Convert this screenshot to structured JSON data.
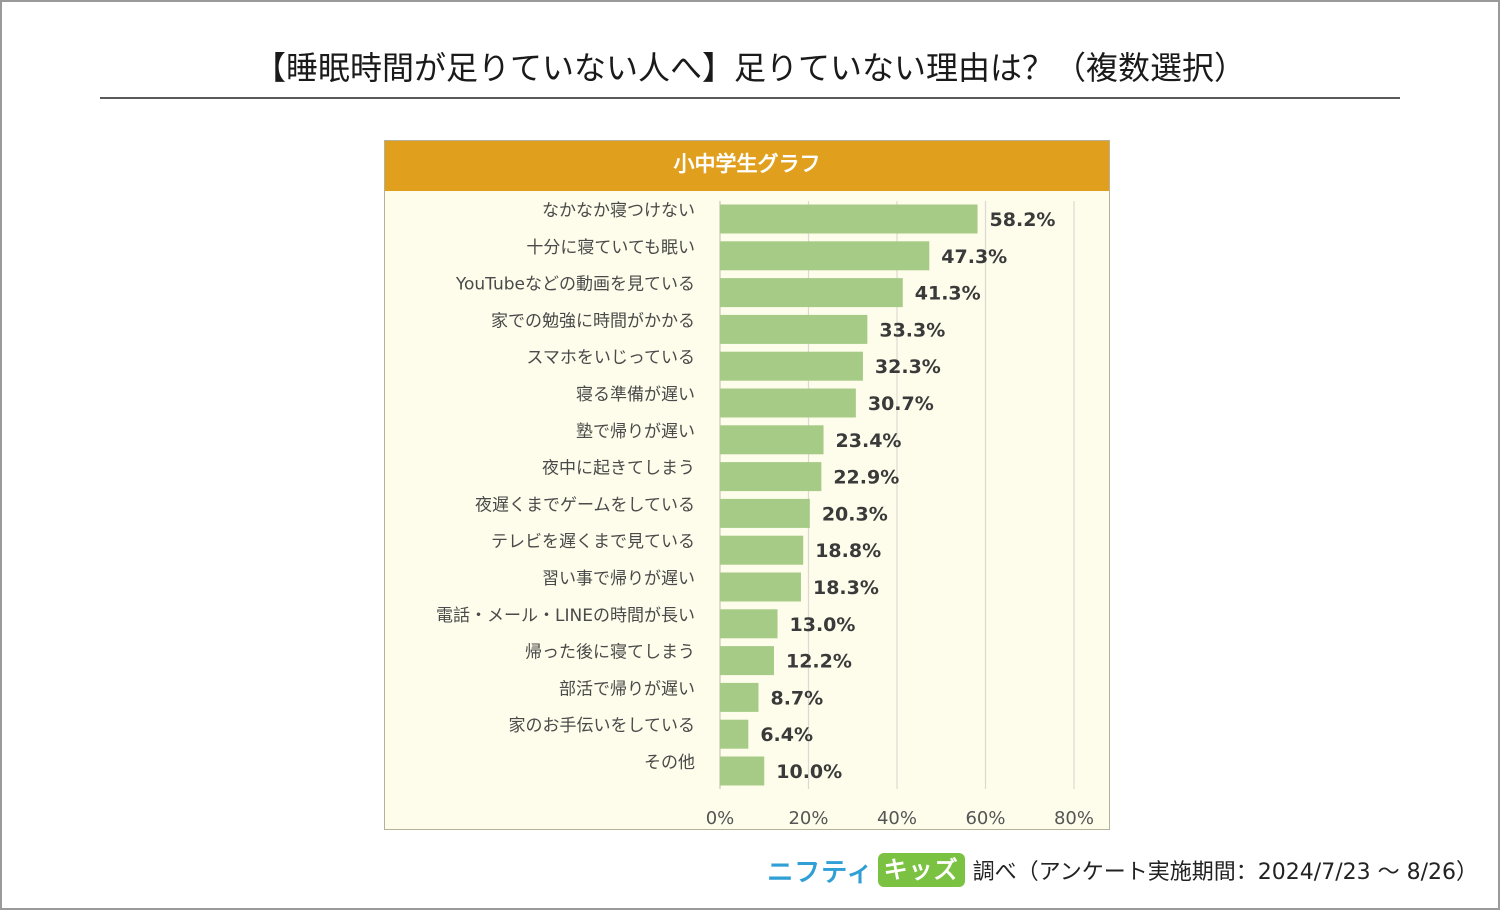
{
  "page": {
    "title": "【睡眠時間が足りていない人へ】足りていない理由は？（複数選択）"
  },
  "chart_panel": {
    "header": "小中学生グラフ"
  },
  "chart_data": {
    "type": "bar",
    "orientation": "horizontal",
    "title": "小中学生グラフ",
    "categories": [
      "なかなか寝つけない",
      "十分に寝ていても眠い",
      "YouTubeなどの動画を見ている",
      "家での勉強に時間がかかる",
      "スマホをいじっている",
      "寝る準備が遅い",
      "塾で帰りが遅い",
      "夜中に起きてしまう",
      "夜遅くまでゲームをしている",
      "テレビを遅くまで見ている",
      "習い事で帰りが遅い",
      "電話・メール・LINEの時間が長い",
      "帰った後に寝てしまう",
      "部活で帰りが遅い",
      "家のお手伝いをしている",
      "その他"
    ],
    "values": [
      58.2,
      47.3,
      41.3,
      33.3,
      32.3,
      30.7,
      23.4,
      22.9,
      20.3,
      18.8,
      18.3,
      13.0,
      12.2,
      8.7,
      6.4,
      10.0
    ],
    "value_labels": [
      "58.2%",
      "47.3%",
      "41.3%",
      "33.3%",
      "32.3%",
      "30.7%",
      "23.4%",
      "22.9%",
      "20.3%",
      "18.8%",
      "18.3%",
      "13.0%",
      "12.2%",
      "8.7%",
      "6.4%",
      "10.0%"
    ],
    "xlim": [
      0,
      80
    ],
    "x_ticks": [
      0,
      20,
      40,
      60,
      80
    ],
    "x_tick_labels": [
      "0%",
      "20%",
      "40%",
      "60%",
      "80%"
    ],
    "grid": true,
    "legend": "none",
    "bar_color": "#a6cb87"
  },
  "footer": {
    "brand_part1": "ニフティ",
    "brand_part2": "キッズ",
    "note": "調べ（アンケート実施期間：2024/7/23 ～ 8/26）"
  },
  "colors": {
    "header_bg": "#e0a01e",
    "panel_bg": "#fefcea",
    "bar": "#a6cb87",
    "brand_blue": "#2f9fd6",
    "brand_green": "#7cc242"
  }
}
